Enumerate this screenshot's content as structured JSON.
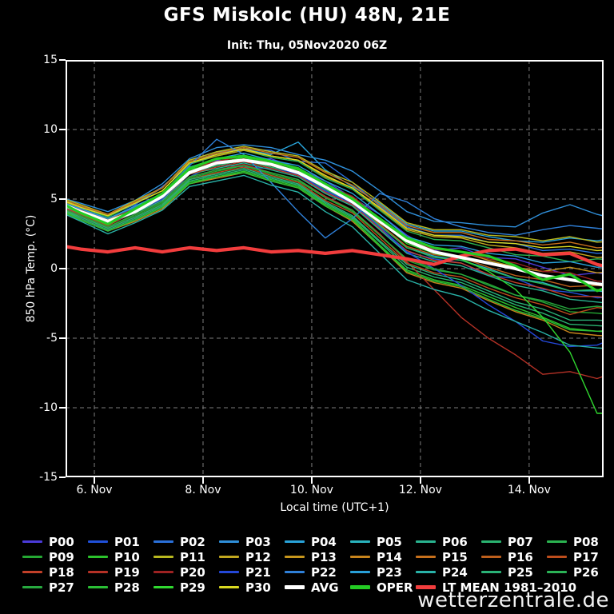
{
  "title": "GFS Miskolc (HU) 48N, 21E",
  "subtitle": "Init: Thu, 05Nov2020 06Z",
  "watermark": "wetterzentrale.de",
  "chart_data": {
    "type": "line",
    "title": "GFS Miskolc (HU) 48N, 21E",
    "subtitle": "Init: Thu, 05Nov2020 06Z",
    "xlabel": "Local time (UTC+1)",
    "ylabel": "850 hPa Temp. (°C)",
    "xlim": [
      5.47,
      15.37
    ],
    "ylim": [
      -15,
      15
    ],
    "x_unit": "day of November 2020",
    "grid": true,
    "background": "#000000",
    "gridline_color": "#7d7d7d",
    "frame_color": "#ffffff",
    "yticks": [
      {
        "v": 15,
        "label": "15"
      },
      {
        "v": 10,
        "label": "10"
      },
      {
        "v": 5,
        "label": "5"
      },
      {
        "v": 0,
        "label": "0"
      },
      {
        "v": -5,
        "label": "-5"
      },
      {
        "v": -10,
        "label": "-10"
      },
      {
        "v": -15,
        "label": "-15"
      }
    ],
    "xticks": [
      {
        "v": 6,
        "label": "6. Nov"
      },
      {
        "v": 8,
        "label": "8. Nov"
      },
      {
        "v": 10,
        "label": "10. Nov"
      },
      {
        "v": 12,
        "label": "12. Nov"
      },
      {
        "v": 14,
        "label": "14. Nov"
      }
    ],
    "ygrid": [
      10,
      5,
      0,
      -5,
      -10
    ],
    "xgrid": [
      6,
      8,
      10,
      12,
      14
    ],
    "x": [
      5.3,
      5.75,
      6.25,
      6.75,
      7.25,
      7.75,
      8.25,
      8.75,
      9.25,
      9.75,
      10.25,
      10.75,
      11.25,
      11.75,
      12.25,
      12.75,
      13.25,
      13.75,
      14.25,
      14.75,
      15.25,
      15.7
    ],
    "series": [
      {
        "name": "P00",
        "color": "#4b3bd9",
        "width": 1.4,
        "values": [
          4.9,
          4.3,
          3.5,
          4.5,
          5.3,
          7.3,
          7.8,
          7.7,
          7.9,
          7.2,
          6.3,
          5.1,
          3.9,
          2.4,
          1.3,
          1.5,
          0.8,
          0.7,
          0.1,
          -0.5,
          -0.3,
          -0.6
        ]
      },
      {
        "name": "P01",
        "color": "#2050d9",
        "width": 1.4,
        "values": [
          4.7,
          3.9,
          3.2,
          4.1,
          5.0,
          6.6,
          7.5,
          7.3,
          7.2,
          6.7,
          5.5,
          4.6,
          2.9,
          1.2,
          0.7,
          0.4,
          -0.5,
          -0.7,
          -1.5,
          -1.7,
          -2.1,
          -2.0
        ]
      },
      {
        "name": "P02",
        "color": "#2a70d9",
        "width": 1.4,
        "values": [
          5.1,
          4.4,
          3.8,
          4.6,
          5.9,
          7.5,
          8.3,
          8.6,
          8.5,
          7.7,
          7.6,
          6.2,
          4.5,
          3.0,
          2.4,
          2.4,
          1.9,
          1.8,
          1.3,
          1.4,
          1.1,
          1.2
        ]
      },
      {
        "name": "P03",
        "color": "#2f8fd9",
        "width": 1.4,
        "values": [
          5.2,
          4.7,
          4.1,
          4.9,
          6.1,
          7.9,
          8.7,
          8.9,
          8.7,
          8.2,
          7.8,
          7.0,
          5.6,
          4.1,
          3.4,
          3.3,
          3.1,
          3.0,
          4.0,
          4.6,
          3.9,
          3.5
        ]
      },
      {
        "name": "P04",
        "color": "#29a3d9",
        "width": 1.4,
        "values": [
          5.1,
          4.5,
          3.9,
          4.7,
          5.8,
          7.8,
          8.4,
          8.6,
          8.2,
          9.1,
          7.1,
          5.9,
          4.7,
          3.2,
          2.7,
          2.7,
          2.3,
          2.0,
          1.9,
          2.2,
          2.0,
          2.3
        ]
      },
      {
        "name": "P05",
        "color": "#29b3bd",
        "width": 1.4,
        "values": [
          4.7,
          4.0,
          3.3,
          4.2,
          5.1,
          6.9,
          7.4,
          7.8,
          7.3,
          6.9,
          5.7,
          4.7,
          3.1,
          1.5,
          0.9,
          0.6,
          0.0,
          -0.7,
          -1.0,
          -1.6,
          -1.6,
          -1.8
        ]
      },
      {
        "name": "P06",
        "color": "#29b38f",
        "width": 1.4,
        "values": [
          4.6,
          3.9,
          3.2,
          4.0,
          4.9,
          6.8,
          7.2,
          7.6,
          7.1,
          6.6,
          5.4,
          4.5,
          2.8,
          1.1,
          0.5,
          0.2,
          -0.5,
          -1.2,
          -1.6,
          -2.2,
          -2.4,
          -2.6
        ]
      },
      {
        "name": "P07",
        "color": "#2ab370",
        "width": 1.4,
        "values": [
          4.4,
          3.6,
          2.8,
          3.6,
          4.5,
          6.3,
          6.7,
          7.1,
          6.5,
          6.0,
          4.7,
          3.7,
          1.9,
          0.1,
          -0.6,
          -1.0,
          -1.8,
          -2.6,
          -3.2,
          -4.0,
          -4.1,
          -4.2
        ]
      },
      {
        "name": "P08",
        "color": "#2bb350",
        "width": 1.4,
        "values": [
          5.0,
          4.4,
          3.7,
          4.7,
          5.6,
          7.5,
          8.1,
          8.5,
          8.0,
          7.7,
          6.5,
          5.7,
          4.2,
          2.7,
          2.1,
          2.0,
          1.5,
          1.0,
          0.9,
          0.5,
          0.7,
          0.6
        ]
      },
      {
        "name": "P09",
        "color": "#25a833",
        "width": 1.4,
        "values": [
          4.5,
          3.8,
          3.0,
          3.8,
          4.7,
          6.5,
          7.0,
          7.4,
          6.8,
          6.3,
          5.1,
          4.1,
          2.4,
          0.6,
          -0.1,
          -0.4,
          -1.1,
          -1.9,
          -2.4,
          -3.1,
          -3.2,
          -3.4
        ]
      },
      {
        "name": "P10",
        "color": "#2cc22c",
        "width": 1.4,
        "values": [
          4.4,
          3.5,
          2.7,
          3.5,
          4.4,
          6.2,
          6.6,
          7.0,
          6.4,
          5.9,
          4.6,
          3.6,
          1.7,
          -0.1,
          -0.8,
          -1.2,
          -2.0,
          -2.8,
          -3.5,
          -4.3,
          -4.5,
          -4.6
        ]
      },
      {
        "name": "P11",
        "color": "#b8b81f",
        "width": 1.4,
        "values": [
          5.2,
          4.6,
          3.9,
          4.9,
          5.8,
          7.8,
          8.4,
          8.8,
          8.4,
          8.1,
          7.0,
          6.2,
          4.8,
          3.3,
          2.8,
          2.8,
          2.4,
          2.3,
          2.0,
          2.3,
          1.9,
          2.0
        ]
      },
      {
        "name": "P12",
        "color": "#c2a81f",
        "width": 1.4,
        "values": [
          5.0,
          4.4,
          3.8,
          4.7,
          5.6,
          7.6,
          8.1,
          8.5,
          8.1,
          7.8,
          6.6,
          5.8,
          4.3,
          2.8,
          2.3,
          2.2,
          1.7,
          1.5,
          1.1,
          1.2,
          0.8,
          0.9
        ]
      },
      {
        "name": "P13",
        "color": "#c7961c",
        "width": 1.4,
        "values": [
          4.8,
          4.2,
          3.5,
          4.4,
          5.3,
          7.2,
          7.7,
          8.1,
          7.6,
          7.2,
          6.0,
          5.1,
          3.6,
          2.0,
          1.4,
          1.2,
          0.6,
          0.1,
          -0.2,
          0.1,
          -0.3,
          -0.2
        ]
      },
      {
        "name": "P14",
        "color": "#c7841c",
        "width": 1.4,
        "values": [
          4.3,
          3.5,
          2.7,
          3.4,
          4.3,
          6.1,
          6.5,
          6.9,
          6.3,
          5.8,
          4.5,
          3.4,
          1.6,
          -0.3,
          -1.0,
          -1.4,
          -2.3,
          -3.1,
          -3.7,
          -4.6,
          -4.8,
          -4.9
        ]
      },
      {
        "name": "P15",
        "color": "#c7701c",
        "width": 1.4,
        "values": [
          5.1,
          4.5,
          3.9,
          4.8,
          5.8,
          7.7,
          8.3,
          8.7,
          8.3,
          8.0,
          6.9,
          6.0,
          4.6,
          3.1,
          2.6,
          2.6,
          2.1,
          2.0,
          1.7,
          1.9,
          1.5,
          1.6
        ]
      },
      {
        "name": "P16",
        "color": "#bd5f1c",
        "width": 1.4,
        "values": [
          4.8,
          4.1,
          3.3,
          4.2,
          5.1,
          7.0,
          7.5,
          7.9,
          7.4,
          7.0,
          5.8,
          4.9,
          3.2,
          1.6,
          1.0,
          0.8,
          0.1,
          -0.5,
          -0.8,
          -1.3,
          -1.2,
          -1.4
        ]
      },
      {
        "name": "P17",
        "color": "#bd4d1c",
        "width": 1.4,
        "values": [
          4.5,
          3.7,
          2.9,
          3.7,
          4.6,
          6.4,
          6.9,
          7.3,
          6.7,
          6.2,
          4.9,
          4.0,
          2.2,
          0.4,
          -0.3,
          -0.6,
          -1.4,
          -2.1,
          -2.6,
          -3.3,
          -2.8,
          -3.0
        ]
      },
      {
        "name": "P18",
        "color": "#c24029",
        "width": 1.4,
        "values": [
          4.7,
          3.9,
          3.1,
          4.1,
          5.0,
          6.8,
          7.3,
          7.7,
          7.2,
          6.7,
          5.5,
          4.6,
          2.9,
          1.3,
          0.6,
          0.4,
          -0.4,
          -1.0,
          -1.4,
          -2.0,
          -2.0,
          -2.2
        ]
      },
      {
        "name": "P19",
        "color": "#b53126",
        "width": 1.4,
        "values": [
          4.6,
          3.8,
          3.0,
          3.9,
          4.8,
          6.6,
          7.1,
          7.5,
          6.9,
          6.4,
          5.2,
          4.2,
          2.5,
          0.5,
          -1.5,
          -3.5,
          -5.0,
          -6.2,
          -7.6,
          -7.4,
          -7.9,
          -7.3
        ]
      },
      {
        "name": "P20",
        "color": "#9e2222",
        "width": 1.4,
        "values": [
          4.9,
          4.2,
          3.4,
          4.4,
          5.3,
          7.2,
          7.7,
          8.1,
          7.6,
          7.2,
          6.0,
          5.2,
          3.6,
          2.0,
          1.4,
          1.2,
          0.7,
          0.4,
          -0.2,
          -0.3,
          -0.9,
          -0.9
        ]
      },
      {
        "name": "P21",
        "color": "#2448d9",
        "width": 1.4,
        "values": [
          4.7,
          4.0,
          3.2,
          4.1,
          5.0,
          6.9,
          7.4,
          7.8,
          7.3,
          6.8,
          5.6,
          4.7,
          3.0,
          1.2,
          0.0,
          -1.2,
          -2.6,
          -3.8,
          -5.2,
          -5.6,
          -5.5,
          -4.8
        ]
      },
      {
        "name": "P22",
        "color": "#2f80d9",
        "width": 1.4,
        "values": [
          4.9,
          4.3,
          3.6,
          4.4,
          5.4,
          7.4,
          9.3,
          8.2,
          6.2,
          4.1,
          2.2,
          3.6,
          5.4,
          4.8,
          3.6,
          3.0,
          2.6,
          2.4,
          2.8,
          3.1,
          2.9,
          2.7
        ]
      },
      {
        "name": "P23",
        "color": "#29a0d9",
        "width": 1.4,
        "values": [
          4.9,
          4.3,
          3.6,
          4.5,
          5.4,
          7.3,
          7.9,
          8.3,
          7.8,
          7.4,
          6.3,
          5.4,
          3.9,
          2.3,
          1.7,
          1.6,
          1.1,
          0.9,
          0.4,
          0.5,
          0.1,
          0.2
        ]
      },
      {
        "name": "P24",
        "color": "#29b3a8",
        "width": 1.4,
        "values": [
          4.2,
          3.4,
          2.5,
          3.3,
          4.2,
          5.9,
          6.3,
          6.7,
          6.0,
          5.5,
          4.1,
          3.0,
          1.1,
          -0.8,
          -1.5,
          -2.0,
          -3.0,
          -3.8,
          -4.6,
          -5.5,
          -5.7,
          -5.8
        ]
      },
      {
        "name": "P25",
        "color": "#2ab377",
        "width": 1.4,
        "values": [
          4.4,
          3.7,
          2.9,
          3.7,
          4.6,
          6.4,
          6.8,
          7.2,
          6.6,
          6.1,
          4.8,
          3.8,
          2.0,
          0.3,
          -0.4,
          -0.8,
          -1.6,
          -2.4,
          -2.9,
          -3.7,
          -3.7,
          -3.8
        ]
      },
      {
        "name": "P26",
        "color": "#2bb356",
        "width": 1.4,
        "values": [
          4.7,
          4.0,
          3.3,
          4.2,
          5.1,
          6.9,
          7.4,
          7.8,
          7.3,
          6.9,
          5.7,
          4.8,
          3.1,
          1.5,
          0.8,
          0.6,
          -0.1,
          -0.7,
          -1.1,
          -1.6,
          -1.5,
          -1.7
        ]
      },
      {
        "name": "P27",
        "color": "#27a93f",
        "width": 1.4,
        "values": [
          4.5,
          3.8,
          3.0,
          3.9,
          4.8,
          6.6,
          7.1,
          7.4,
          6.9,
          6.4,
          5.1,
          4.2,
          2.4,
          0.7,
          0.0,
          -0.4,
          -1.2,
          -1.9,
          -2.3,
          -2.9,
          -2.7,
          -2.9
        ]
      },
      {
        "name": "P28",
        "color": "#2abf35",
        "width": 1.4,
        "values": [
          4.3,
          3.5,
          2.7,
          3.5,
          4.4,
          6.1,
          6.6,
          6.9,
          6.3,
          5.8,
          4.5,
          3.5,
          1.6,
          -0.2,
          -0.9,
          -1.3,
          -2.2,
          -3.0,
          -3.6,
          -4.4,
          -4.5,
          -4.4
        ]
      },
      {
        "name": "P29",
        "color": "#30d930",
        "width": 1.4,
        "values": [
          4.8,
          4.1,
          3.4,
          4.3,
          5.2,
          7.1,
          7.6,
          8.0,
          7.5,
          7.1,
          5.9,
          5.0,
          3.4,
          1.8,
          1.1,
          0.7,
          -0.2,
          -1.5,
          -3.5,
          -6.0,
          -10.4,
          -10.4
        ]
      },
      {
        "name": "P30",
        "color": "#d9d921",
        "width": 1.4,
        "values": [
          5.1,
          4.4,
          3.8,
          4.7,
          5.6,
          7.6,
          8.2,
          8.6,
          8.1,
          7.8,
          6.7,
          5.8,
          4.4,
          2.9,
          2.4,
          2.3,
          1.9,
          1.8,
          1.5,
          1.6,
          1.3,
          1.4
        ]
      },
      {
        "name": "AVG",
        "color": "#ffffff",
        "width": 4,
        "values": [
          4.8,
          4.1,
          3.4,
          4.1,
          5.2,
          6.9,
          7.6,
          7.8,
          7.5,
          6.9,
          5.9,
          4.8,
          3.4,
          2.0,
          1.2,
          0.8,
          0.4,
          0.0,
          -0.5,
          -0.8,
          -1.1,
          -1.3
        ]
      },
      {
        "name": "OPER",
        "color": "#24cc24",
        "width": 3.2,
        "values": [
          4.9,
          4.0,
          3.2,
          4.3,
          5.4,
          7.2,
          7.9,
          8.1,
          7.7,
          7.2,
          6.1,
          5.0,
          3.6,
          2.2,
          1.5,
          1.2,
          0.9,
          0.2,
          -0.8,
          -0.4,
          -1.6,
          -1.0
        ]
      },
      {
        "name": "LT MEAN 1981–2010",
        "color": "#f23d3d",
        "width": 4.2,
        "values": [
          1.7,
          1.4,
          1.2,
          1.5,
          1.2,
          1.5,
          1.3,
          1.5,
          1.2,
          1.3,
          1.1,
          1.3,
          1.0,
          0.7,
          0.3,
          0.9,
          1.3,
          1.4,
          1.0,
          1.1,
          0.3,
          -0.1
        ]
      }
    ],
    "draw_order_top": [
      "LT MEAN 1981–2010",
      "AVG",
      "OPER"
    ],
    "legend_position": "bottom",
    "legend_rows": [
      [
        "P00",
        "P01",
        "P02",
        "P03",
        "P04",
        "P05",
        "P06",
        "P07",
        "P08"
      ],
      [
        "P09",
        "P10",
        "P11",
        "P12",
        "P13",
        "P14",
        "P15",
        "P16",
        "P17"
      ],
      [
        "P18",
        "P19",
        "P20",
        "P21",
        "P22",
        "P23",
        "P24",
        "P25",
        "P26"
      ],
      [
        "P27",
        "P28",
        "P29",
        "P30",
        "AVG",
        "OPER",
        "LT MEAN 1981–2010"
      ]
    ]
  }
}
